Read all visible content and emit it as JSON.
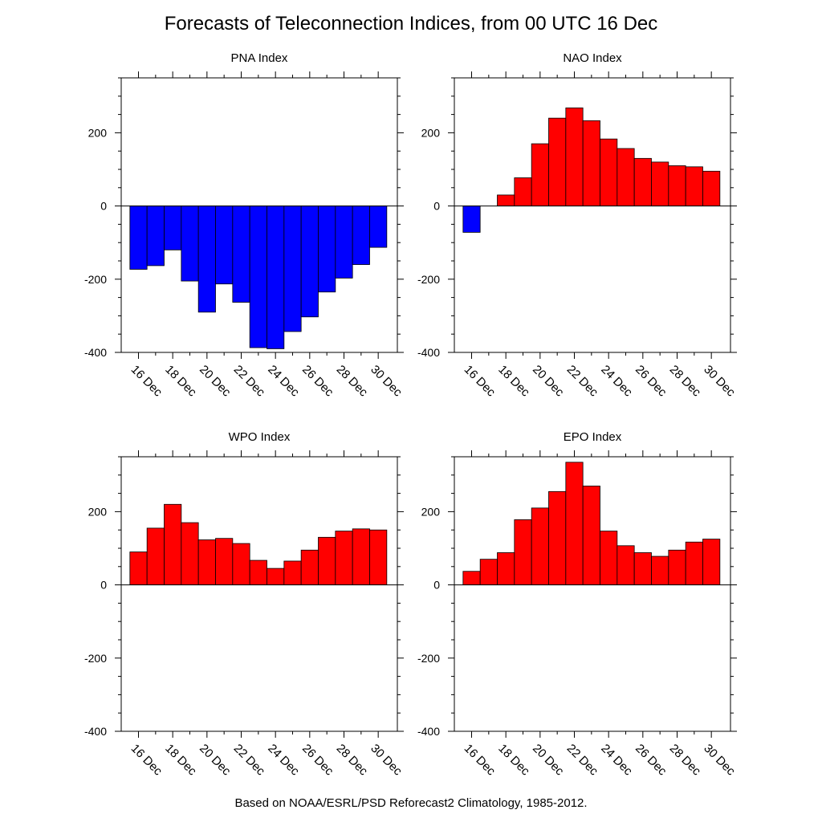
{
  "title": "Forecasts of Teleconnection Indices, from 00 UTC 16 Dec",
  "footer": "Based on NOAA/ESRL/PSD Reforecast2 Climatology, 1985-2012.",
  "colors": {
    "positive": "#ff0000",
    "negative": "#0000ff",
    "axis": "#000000"
  },
  "chart_data": [
    {
      "type": "bar",
      "title": "PNA Index",
      "categories": [
        "16 Dec",
        "17 Dec",
        "18 Dec",
        "19 Dec",
        "20 Dec",
        "21 Dec",
        "22 Dec",
        "23 Dec",
        "24 Dec",
        "25 Dec",
        "26 Dec",
        "27 Dec",
        "28 Dec",
        "29 Dec",
        "30 Dec"
      ],
      "tick_labels": [
        "16 Dec",
        "18 Dec",
        "20 Dec",
        "22 Dec",
        "24 Dec",
        "26 Dec",
        "28 Dec",
        "30 Dec"
      ],
      "values": [
        -173,
        -163,
        -120,
        -205,
        -290,
        -213,
        -263,
        -387,
        -390,
        -343,
        -303,
        -235,
        -197,
        -160,
        -113
      ],
      "ylim": [
        -400,
        350
      ],
      "yticks": [
        -400,
        -200,
        0,
        200
      ]
    },
    {
      "type": "bar",
      "title": "NAO Index",
      "categories": [
        "16 Dec",
        "17 Dec",
        "18 Dec",
        "19 Dec",
        "20 Dec",
        "21 Dec",
        "22 Dec",
        "23 Dec",
        "24 Dec",
        "25 Dec",
        "26 Dec",
        "27 Dec",
        "28 Dec",
        "29 Dec",
        "30 Dec"
      ],
      "tick_labels": [
        "16 Dec",
        "18 Dec",
        "20 Dec",
        "22 Dec",
        "24 Dec",
        "26 Dec",
        "28 Dec",
        "30 Dec"
      ],
      "values": [
        -72,
        0,
        30,
        77,
        170,
        240,
        268,
        233,
        183,
        157,
        130,
        120,
        110,
        107,
        95
      ],
      "ylim": [
        -400,
        350
      ],
      "yticks": [
        -400,
        -200,
        0,
        200
      ]
    },
    {
      "type": "bar",
      "title": "WPO Index",
      "categories": [
        "16 Dec",
        "17 Dec",
        "18 Dec",
        "19 Dec",
        "20 Dec",
        "21 Dec",
        "22 Dec",
        "23 Dec",
        "24 Dec",
        "25 Dec",
        "26 Dec",
        "27 Dec",
        "28 Dec",
        "29 Dec",
        "30 Dec"
      ],
      "tick_labels": [
        "16 Dec",
        "18 Dec",
        "20 Dec",
        "22 Dec",
        "24 Dec",
        "26 Dec",
        "28 Dec",
        "30 Dec"
      ],
      "values": [
        90,
        155,
        220,
        170,
        123,
        127,
        113,
        67,
        45,
        65,
        95,
        130,
        147,
        153,
        150
      ],
      "ylim": [
        -400,
        350
      ],
      "yticks": [
        -400,
        -200,
        0,
        200
      ]
    },
    {
      "type": "bar",
      "title": "EPO Index",
      "categories": [
        "16 Dec",
        "17 Dec",
        "18 Dec",
        "19 Dec",
        "20 Dec",
        "21 Dec",
        "22 Dec",
        "23 Dec",
        "24 Dec",
        "25 Dec",
        "26 Dec",
        "27 Dec",
        "28 Dec",
        "29 Dec",
        "30 Dec"
      ],
      "tick_labels": [
        "16 Dec",
        "18 Dec",
        "20 Dec",
        "22 Dec",
        "24 Dec",
        "26 Dec",
        "28 Dec",
        "30 Dec"
      ],
      "values": [
        37,
        70,
        88,
        178,
        210,
        255,
        335,
        270,
        147,
        107,
        88,
        78,
        95,
        117,
        125
      ],
      "ylim": [
        -400,
        350
      ],
      "yticks": [
        -400,
        -200,
        0,
        200
      ]
    }
  ]
}
